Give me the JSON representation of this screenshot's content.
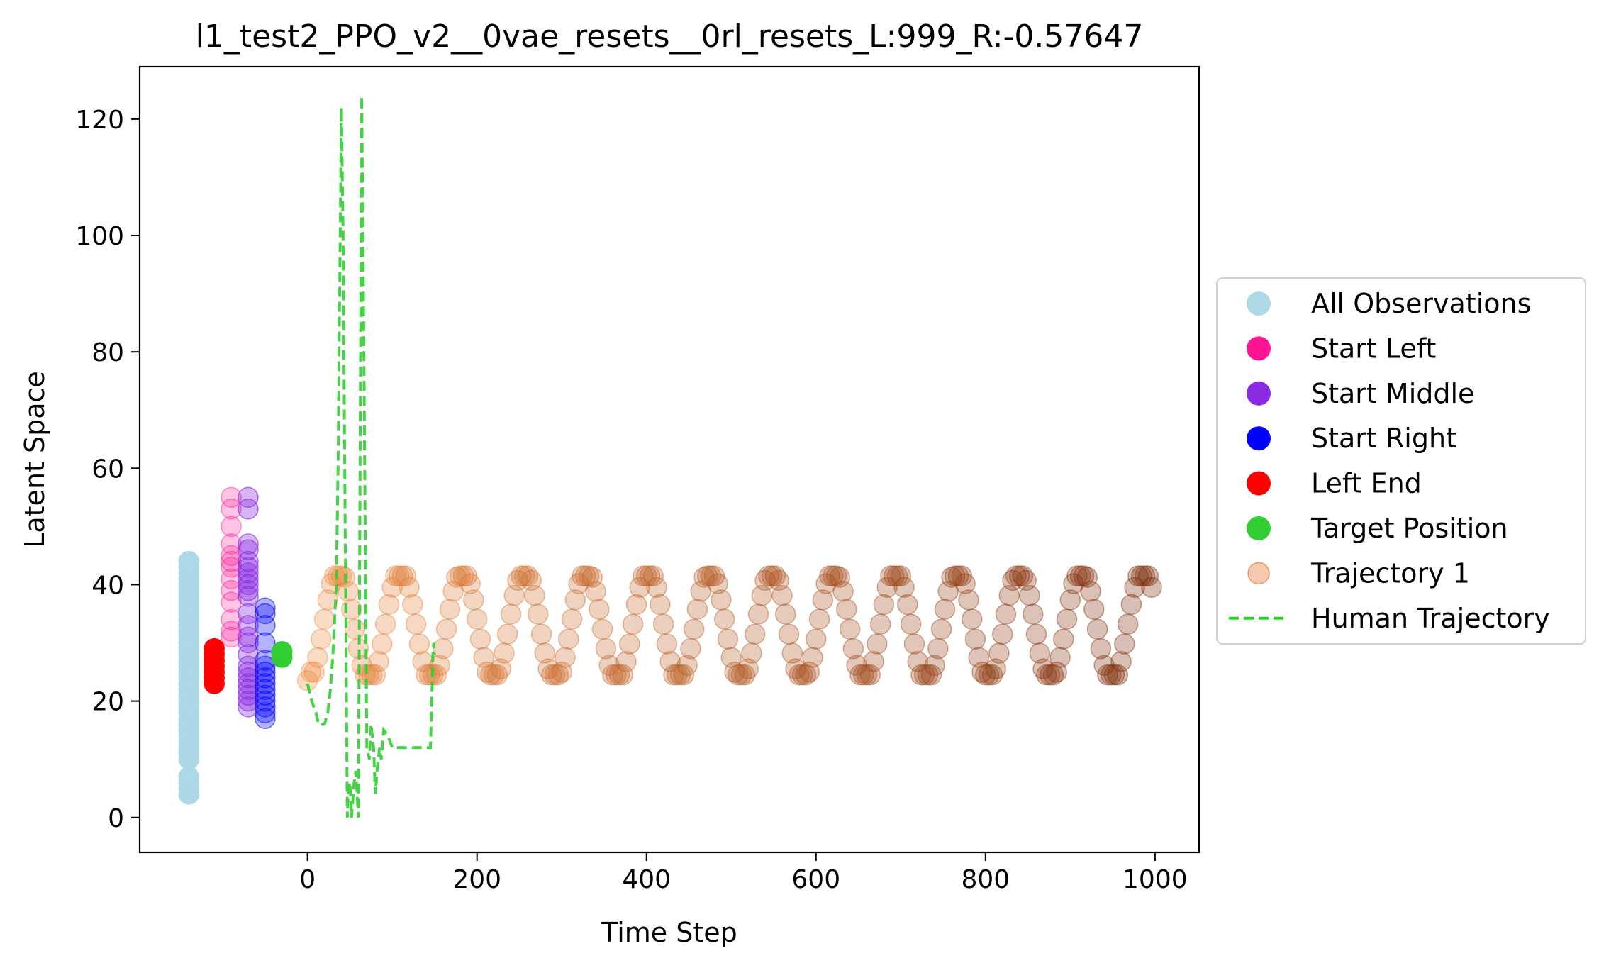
{
  "chart_data": {
    "type": "scatter",
    "title": "l1_test2_PPO_v2__0vae_resets__0rl_resets_L:999_R:-0.57647",
    "xlabel": "Time Step",
    "ylabel": "Latent Space",
    "xlim": [
      -198,
      1052
    ],
    "ylim": [
      -6,
      129
    ],
    "xticks": [
      0,
      200,
      400,
      600,
      800,
      1000
    ],
    "yticks": [
      0,
      20,
      40,
      60,
      80,
      100,
      120
    ],
    "grid": false,
    "legend_position": "center-right-outside",
    "legend": [
      {
        "label": "All Observations",
        "marker": "dot",
        "color": "#add8e6"
      },
      {
        "label": "Start Left",
        "marker": "dot",
        "color": "#ff1493"
      },
      {
        "label": "Start Middle",
        "marker": "dot",
        "color": "#8a2be2"
      },
      {
        "label": "Start Right",
        "marker": "dot",
        "color": "#0000ff"
      },
      {
        "label": "Left End",
        "marker": "dot",
        "color": "#ff0000"
      },
      {
        "label": "Target Position",
        "marker": "dot",
        "color": "#32cd32"
      },
      {
        "label": "Trajectory 1",
        "marker": "faded-dot",
        "color": "#e8671c"
      },
      {
        "label": "Human Trajectory",
        "marker": "dashed-line",
        "color": "#32cd32"
      }
    ],
    "series": [
      {
        "name": "All Observations",
        "kind": "scatter",
        "color": "#add8e6",
        "opacity": 1,
        "x": [
          -140,
          -140,
          -140,
          -140,
          -140,
          -140,
          -140,
          -140,
          -140,
          -140,
          -140,
          -140,
          -140,
          -140,
          -140,
          -140,
          -140,
          -140,
          -140,
          -140,
          -140,
          -140,
          -140,
          -140,
          -140,
          -140,
          -140,
          -140,
          -140,
          -140,
          -140,
          -140,
          -140,
          -140,
          -140,
          -140,
          -140,
          -140,
          -140
        ],
        "y": [
          4,
          5,
          6,
          7,
          10,
          11,
          12,
          13,
          14,
          15,
          16,
          17,
          18,
          19,
          20,
          21,
          22,
          23,
          24,
          25,
          26,
          27,
          28,
          29,
          30,
          31,
          32,
          33,
          34,
          35,
          36,
          37,
          38,
          39,
          40,
          41,
          42,
          43,
          44
        ]
      },
      {
        "name": "Start Left",
        "kind": "scatter",
        "color": "#ff1493",
        "opacity": 0.25,
        "x": [
          -90,
          -90,
          -90,
          -90,
          -90,
          -90,
          -90,
          -90,
          -90,
          -90,
          -90,
          -90,
          -90
        ],
        "y": [
          31,
          32,
          34,
          37,
          39,
          41,
          43,
          44,
          45,
          47,
          50,
          53,
          55
        ]
      },
      {
        "name": "Start Middle",
        "kind": "scatter",
        "color": "#8a2be2",
        "opacity": 0.35,
        "x": [
          -70,
          -70,
          -70,
          -70,
          -70,
          -70,
          -70,
          -70,
          -70,
          -70,
          -70,
          -70,
          -70,
          -70,
          -70,
          -70,
          -70,
          -70,
          -70,
          -70,
          -70,
          -70,
          -70,
          -70
        ],
        "y": [
          19,
          20,
          21,
          22,
          23,
          24,
          25,
          26,
          28,
          30,
          31,
          33,
          35,
          38,
          39,
          40,
          41,
          42,
          43,
          44,
          46,
          47,
          53,
          55
        ]
      },
      {
        "name": "Start Right",
        "kind": "scatter",
        "color": "#0000ff",
        "opacity": 0.3,
        "x": [
          -50,
          -50,
          -50,
          -50,
          -50,
          -50,
          -50,
          -50,
          -50,
          -50,
          -50,
          -50,
          -50,
          -50,
          -50
        ],
        "y": [
          17,
          18,
          19,
          20,
          21,
          22,
          23,
          24,
          25,
          26,
          27,
          30,
          33,
          35,
          36
        ]
      },
      {
        "name": "Left End",
        "kind": "scatter",
        "color": "#ff0000",
        "opacity": 1,
        "x": [
          -110,
          -110,
          -110,
          -110,
          -110,
          -110,
          -110
        ],
        "y": [
          23,
          24,
          25,
          26,
          27,
          28,
          29
        ]
      },
      {
        "name": "Target Position",
        "kind": "scatter",
        "color": "#32cd32",
        "opacity": 1,
        "x": [
          -30,
          -30
        ],
        "y": [
          27.5,
          28.5
        ]
      },
      {
        "name": "Trajectory 1",
        "kind": "oscillation",
        "opacity": 0.3,
        "x_start": 0,
        "x_end": 999,
        "y_start": 23.5,
        "y_min": 24.5,
        "y_max": 41.5,
        "period": 73,
        "first_peak": 37,
        "point_step": 4,
        "color_start": "#ef8a3e",
        "color_end": "#7a2908"
      },
      {
        "name": "Human Trajectory",
        "kind": "line",
        "color": "#32cd32",
        "dash": "dashed",
        "x": [
          0,
          5,
          10,
          13,
          15,
          20,
          24,
          27,
          30,
          34,
          36,
          40,
          42,
          45,
          47,
          48,
          50,
          52,
          55,
          57,
          60,
          62,
          64,
          66,
          70,
          73,
          75,
          78,
          80,
          82,
          85,
          87,
          90,
          95,
          100,
          105,
          110,
          115,
          120,
          130,
          140,
          145,
          147,
          148,
          149,
          150
        ],
        "y": [
          23,
          20,
          18,
          16,
          16,
          16,
          18,
          22,
          28,
          40,
          60,
          122,
          100,
          40,
          0,
          4,
          6,
          0,
          6,
          8,
          0,
          60,
          124,
          90,
          12,
          10,
          16,
          12,
          4,
          8,
          12,
          10,
          15,
          14,
          12,
          12,
          12,
          12,
          12,
          12,
          12,
          12,
          22,
          28,
          30,
          28
        ]
      }
    ]
  }
}
